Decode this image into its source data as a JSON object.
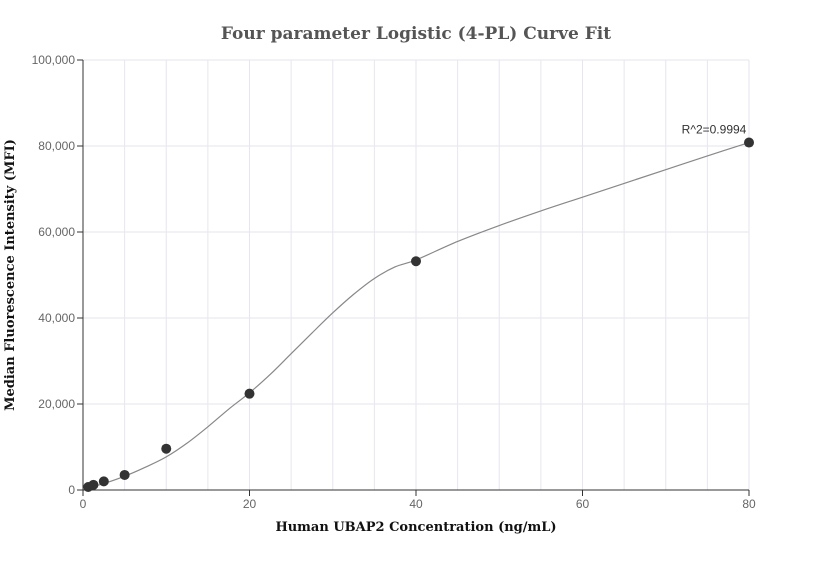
{
  "chart_data": {
    "type": "scatter",
    "title": "Four parameter Logistic (4-PL) Curve Fit",
    "xlabel": "Human UBAP2 Concentration (ng/mL)",
    "ylabel": "Median Fluorescence Intensity (MFI)",
    "xlim": [
      0,
      80
    ],
    "ylim": [
      0,
      100000
    ],
    "x_ticks": [
      0,
      20,
      40,
      60,
      80
    ],
    "x_tick_labels": [
      "0",
      "20",
      "40",
      "60",
      "80"
    ],
    "y_ticks": [
      0,
      20000,
      40000,
      60000,
      80000,
      100000
    ],
    "y_tick_labels": [
      "0",
      "20,000",
      "40,000",
      "60,000",
      "80,000",
      "100,000"
    ],
    "grid": true,
    "series": [
      {
        "kind": "points",
        "x": [
          0.625,
          1.25,
          2.5,
          5,
          10,
          20,
          40,
          80
        ],
        "y": [
          700,
          1200,
          2000,
          3500,
          9600,
          22400,
          53200,
          80800
        ]
      },
      {
        "kind": "fit-curve",
        "x": [
          0,
          2.5,
          5,
          7.5,
          10,
          12.5,
          15,
          17.5,
          20,
          22.5,
          25,
          27.5,
          30,
          32.5,
          35,
          37.5,
          40,
          45,
          50,
          55,
          60,
          65,
          70,
          75,
          80
        ],
        "y": [
          300,
          1500,
          3200,
          5300,
          7700,
          10900,
          14700,
          18800,
          22600,
          26900,
          31700,
          36500,
          41200,
          45500,
          49200,
          51900,
          53500,
          57800,
          61500,
          64900,
          68100,
          71300,
          74500,
          77700,
          80800
        ]
      }
    ],
    "annotations": [
      {
        "text": "R^2=0.9994",
        "x": 80,
        "y": 80800
      }
    ],
    "colors": {
      "point": "#333333",
      "curve": "#888888",
      "grid": "#e6e6ee",
      "axis": "#333333"
    }
  }
}
